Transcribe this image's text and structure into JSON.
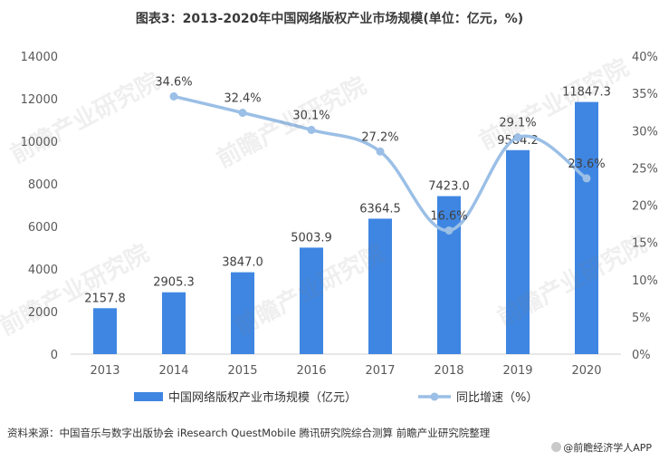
{
  "title": "图表3：2013-2020年中国网络版权产业市场规模(单位：亿元，%)",
  "watermark": "前瞻产业研究院",
  "source_label": "资料来源：",
  "source_text": "中国音乐与数字出版协会 iResearch QuestMobile 腾讯研究院综合测算 前瞻产业研究院整理",
  "brand": "@前瞻经济学人APP",
  "colors": {
    "bar": "#3f86e2",
    "line": "#9bbfe6",
    "axis": "#d0d0d0",
    "text": "#595959"
  },
  "chart_data": {
    "type": "bar",
    "title": "图表3：2013-2020年中国网络版权产业市场规模(单位：亿元，%)",
    "categories": [
      "2013",
      "2014",
      "2015",
      "2016",
      "2017",
      "2018",
      "2019",
      "2020"
    ],
    "series": [
      {
        "name": "中国网络版权产业市场规模（亿元）",
        "type": "bar",
        "axis": "left",
        "values": [
          2157.8,
          2905.3,
          3847.0,
          5003.9,
          6364.5,
          7423.0,
          9584.2,
          11847.3
        ],
        "labels": [
          "2157.8",
          "2905.3",
          "3847.0",
          "5003.9",
          "6364.5",
          "7423.0",
          "9584.2",
          "11847.3"
        ]
      },
      {
        "name": "同比增速（%）",
        "type": "line",
        "axis": "right",
        "values": [
          null,
          34.6,
          32.4,
          30.1,
          27.2,
          16.6,
          29.1,
          23.6
        ],
        "labels": [
          "",
          "34.6%",
          "32.4%",
          "30.1%",
          "27.2%",
          "16.6%",
          "29.1%",
          "23.6%"
        ]
      }
    ],
    "y_left": {
      "ylim": [
        0,
        14000
      ],
      "ticks": [
        0,
        2000,
        4000,
        6000,
        8000,
        10000,
        12000,
        14000
      ],
      "tick_labels": [
        "0",
        "2000",
        "4000",
        "6000",
        "8000",
        "10000",
        "12000",
        "14000"
      ]
    },
    "y_right": {
      "ylim": [
        0,
        40
      ],
      "ticks": [
        0,
        5,
        10,
        15,
        20,
        25,
        30,
        35,
        40
      ],
      "tick_labels": [
        "0%",
        "5%",
        "10%",
        "15%",
        "20%",
        "25%",
        "30%",
        "35%",
        "40%"
      ]
    },
    "grid": false,
    "legend_position": "bottom"
  }
}
